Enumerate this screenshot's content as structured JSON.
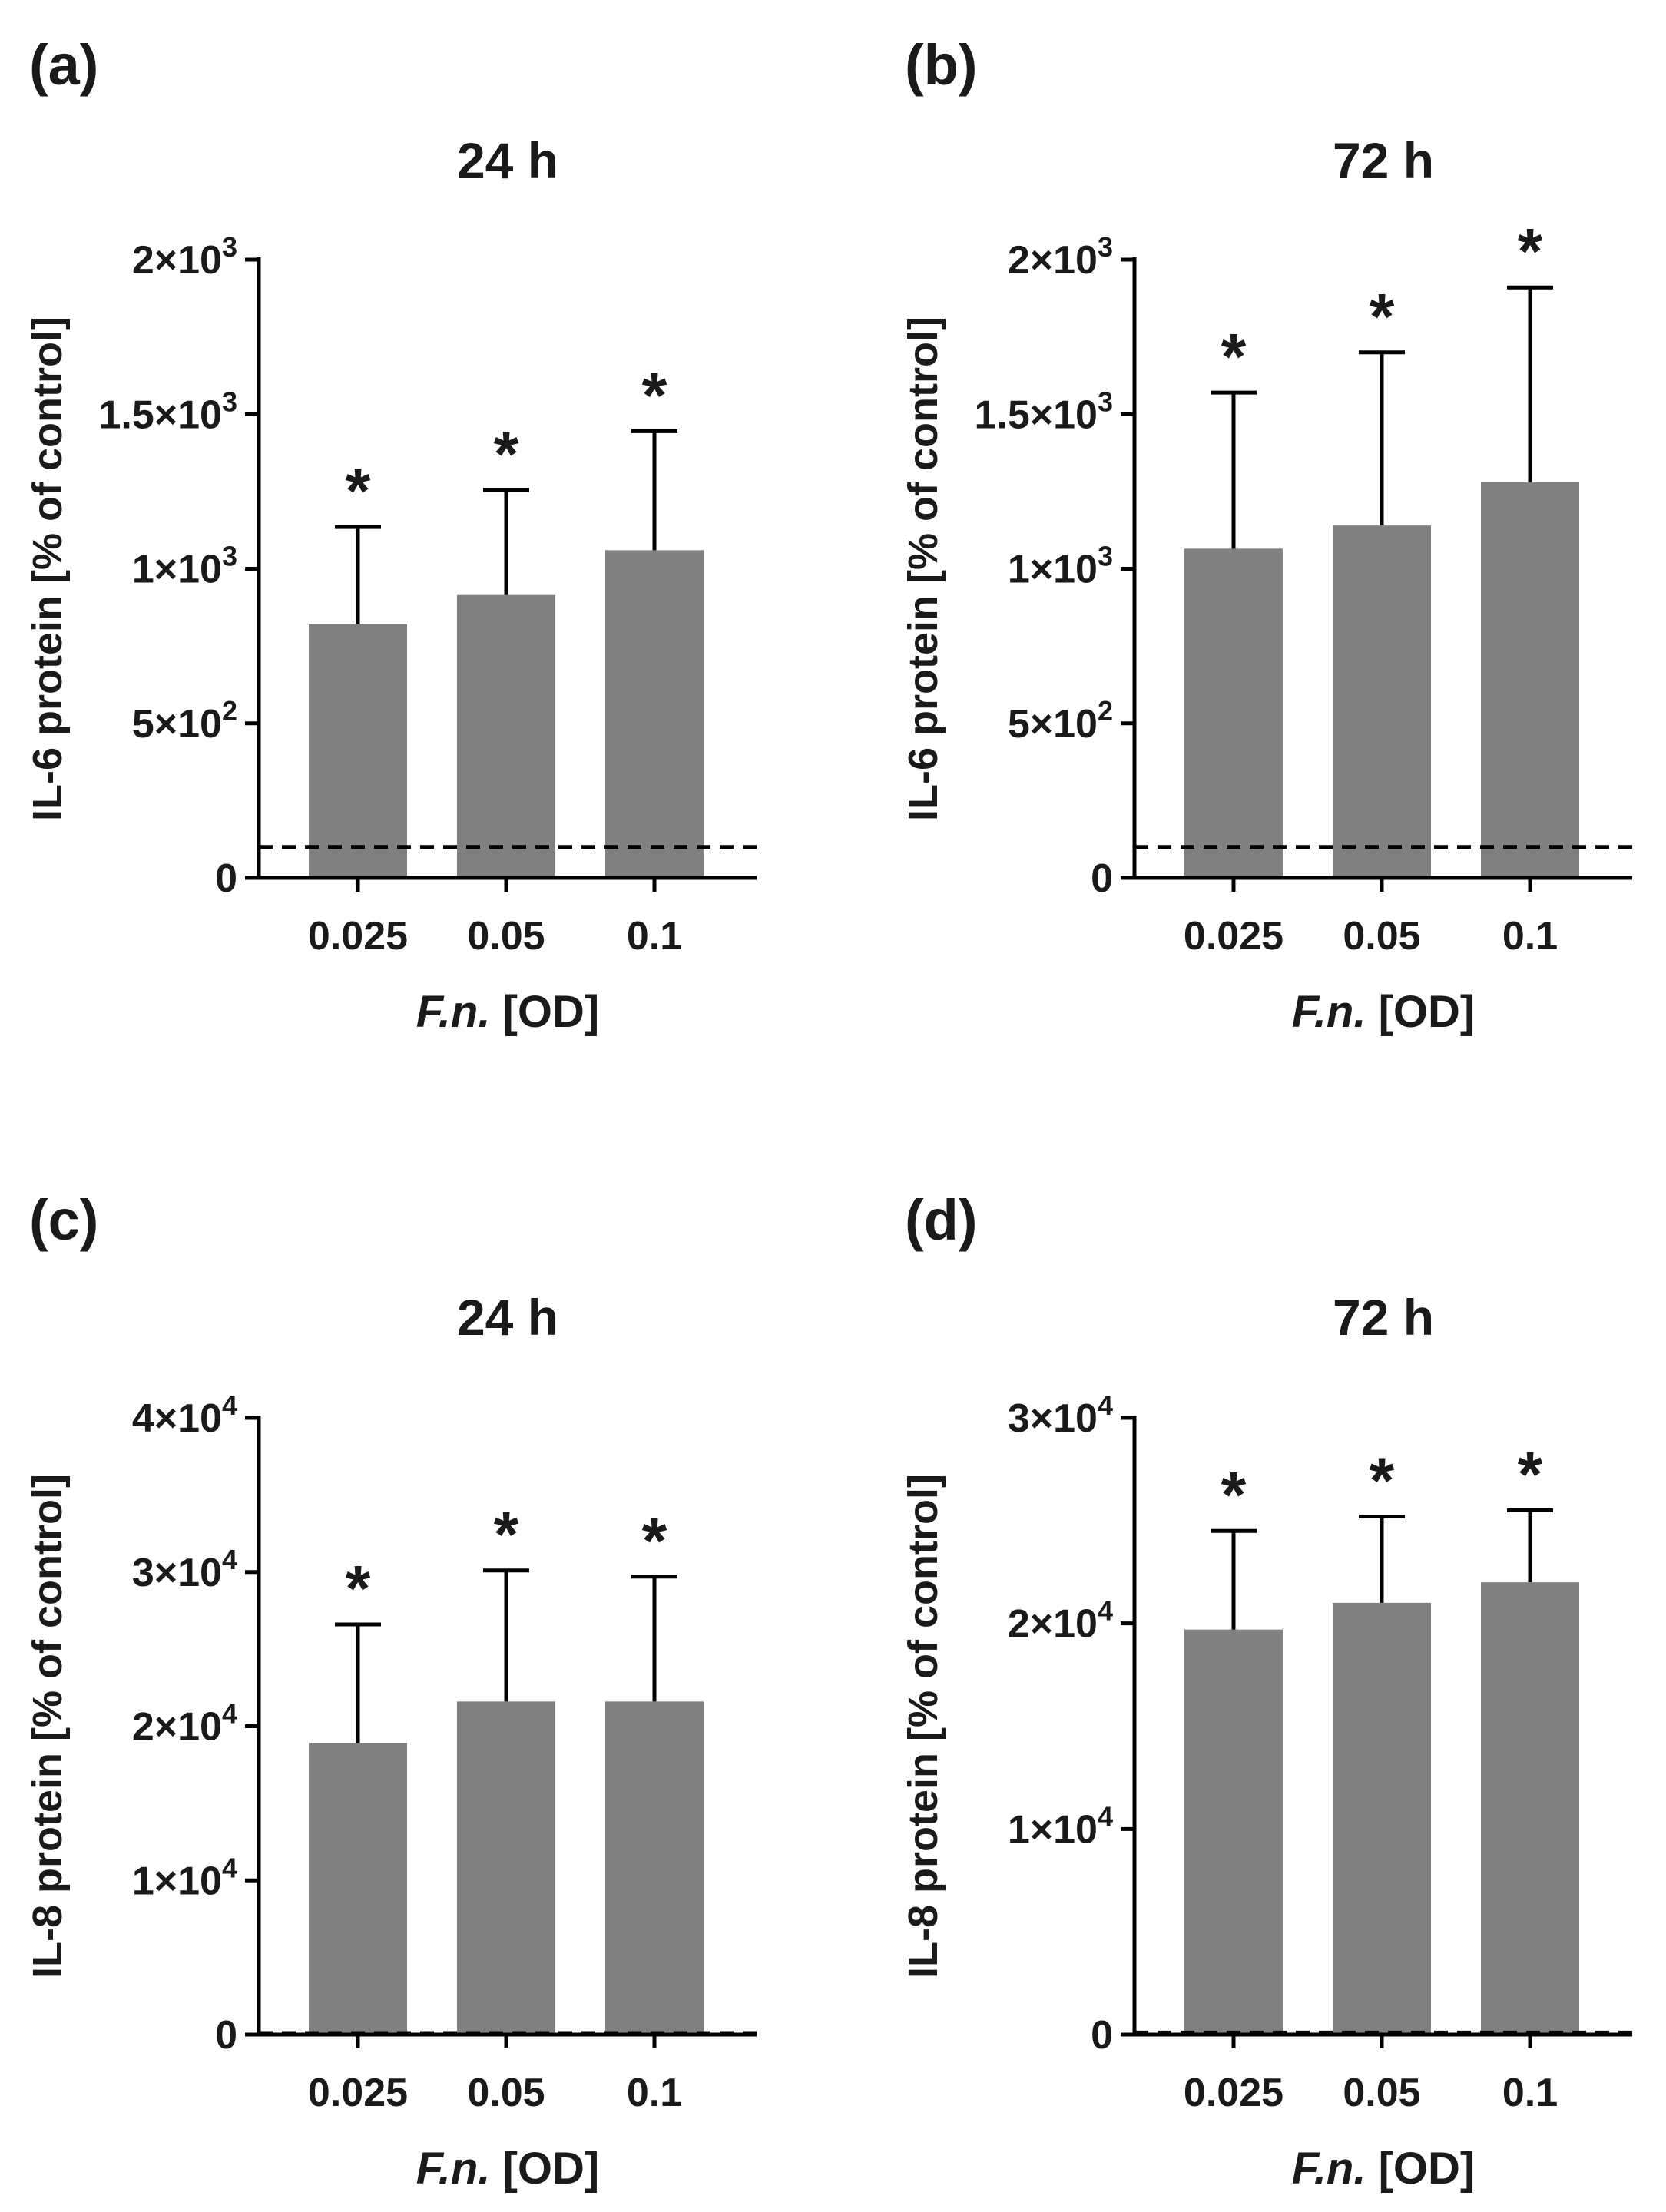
{
  "chart_data": [
    {
      "panel": "(a)",
      "type": "bar",
      "title": "24 h",
      "categories": [
        "0.025",
        "0.05",
        "0.1"
      ],
      "values": [
        820,
        915,
        1060
      ],
      "errors": [
        315,
        340,
        385
      ],
      "significance": [
        "*",
        "*",
        "*"
      ],
      "control_level": 100,
      "ylim": [
        0,
        2000
      ],
      "yticks": [
        0,
        500,
        1000,
        1500,
        2000
      ],
      "ytick_labels": [
        {
          "mantissa": "0",
          "exp": ""
        },
        {
          "mantissa": "5×10",
          "exp": "2"
        },
        {
          "mantissa": "1×10",
          "exp": "3"
        },
        {
          "mantissa": "1.5×10",
          "exp": "3"
        },
        {
          "mantissa": "2×10",
          "exp": "3"
        }
      ],
      "ylabel": "IL-6 protein [% of control]",
      "xlabel_italic": "F.n.",
      "xlabel_rest": " [OD]"
    },
    {
      "panel": "(b)",
      "type": "bar",
      "title": "72 h",
      "categories": [
        "0.025",
        "0.05",
        "0.1"
      ],
      "values": [
        1065,
        1140,
        1280
      ],
      "errors": [
        505,
        560,
        630
      ],
      "significance": [
        "*",
        "*",
        "*"
      ],
      "control_level": 100,
      "ylim": [
        0,
        2000
      ],
      "yticks": [
        0,
        500,
        1000,
        1500,
        2000
      ],
      "ytick_labels": [
        {
          "mantissa": "0",
          "exp": ""
        },
        {
          "mantissa": "5×10",
          "exp": "2"
        },
        {
          "mantissa": "1×10",
          "exp": "3"
        },
        {
          "mantissa": "1.5×10",
          "exp": "3"
        },
        {
          "mantissa": "2×10",
          "exp": "3"
        }
      ],
      "ylabel": "IL-6 protein [% of control]",
      "xlabel_italic": "F.n.",
      "xlabel_rest": " [OD]"
    },
    {
      "panel": "(c)",
      "type": "bar",
      "title": "24 h",
      "categories": [
        "0.025",
        "0.05",
        "0.1"
      ],
      "values": [
        18900,
        21600,
        21600
      ],
      "errors": [
        7700,
        8500,
        8100
      ],
      "significance": [
        "*",
        "*",
        "*"
      ],
      "control_level": 100,
      "ylim": [
        0,
        40000
      ],
      "yticks": [
        0,
        10000,
        20000,
        30000,
        40000
      ],
      "ytick_labels": [
        {
          "mantissa": "0",
          "exp": ""
        },
        {
          "mantissa": "1×10",
          "exp": "4"
        },
        {
          "mantissa": "2×10",
          "exp": "4"
        },
        {
          "mantissa": "3×10",
          "exp": "4"
        },
        {
          "mantissa": "4×10",
          "exp": "4"
        }
      ],
      "ylabel": "IL-8 protein [% of control]",
      "xlabel_italic": "F.n.",
      "xlabel_rest": " [OD]"
    },
    {
      "panel": "(d)",
      "type": "bar",
      "title": "72 h",
      "categories": [
        "0.025",
        "0.05",
        "0.1"
      ],
      "values": [
        19700,
        21000,
        22000
      ],
      "errors": [
        4800,
        4200,
        3500
      ],
      "significance": [
        "*",
        "*",
        "*"
      ],
      "control_level": 100,
      "ylim": [
        0,
        30000
      ],
      "yticks": [
        0,
        10000,
        20000,
        30000
      ],
      "ytick_labels": [
        {
          "mantissa": "0",
          "exp": ""
        },
        {
          "mantissa": "1×10",
          "exp": "4"
        },
        {
          "mantissa": "2×10",
          "exp": "4"
        },
        {
          "mantissa": "3×10",
          "exp": "4"
        }
      ],
      "ylabel": "IL-8 protein [% of control]",
      "xlabel_italic": "F.n.",
      "xlabel_rest": " [OD]"
    }
  ],
  "colors": {
    "bar": "#808080",
    "axis": "#000000"
  }
}
